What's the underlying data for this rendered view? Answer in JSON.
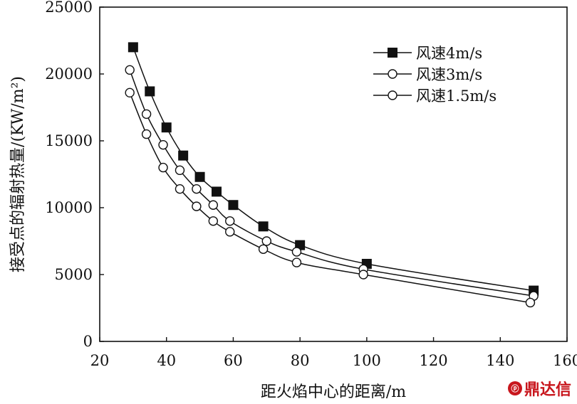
{
  "chart_data": {
    "type": "line",
    "xlabel": "距火焰中心的距离/m",
    "ylabel": "接受点的辐射热量/(KW/m²)",
    "xlim": [
      20,
      160
    ],
    "ylim": [
      0,
      25000
    ],
    "xticks": [
      "20",
      "40",
      "60",
      "80",
      "100",
      "120",
      "140",
      "160"
    ],
    "yticks": [
      "0",
      "5000",
      "10000",
      "15000",
      "20000",
      "25000"
    ],
    "legend_position": "top-right",
    "series": [
      {
        "name": "风速4m/s",
        "marker": "filled-square",
        "x": [
          30,
          35,
          40,
          45,
          50,
          55,
          60,
          69,
          80,
          100,
          150
        ],
        "y": [
          22000,
          18700,
          16000,
          13900,
          12300,
          11200,
          10200,
          8600,
          7200,
          5800,
          3800
        ]
      },
      {
        "name": "风速3m/s",
        "marker": "open-circle",
        "x": [
          29,
          34,
          39,
          44,
          49,
          54,
          59,
          70,
          79,
          99,
          150
        ],
        "y": [
          20300,
          17000,
          14700,
          12800,
          11400,
          10200,
          9000,
          7500,
          6700,
          5400,
          3400
        ]
      },
      {
        "name": "风速1.5m/s",
        "marker": "open-circle",
        "x": [
          29,
          34,
          39,
          44,
          49,
          54,
          59,
          69,
          79,
          99,
          149
        ],
        "y": [
          18600,
          15500,
          13000,
          11400,
          10100,
          9000,
          8200,
          6900,
          5900,
          5000,
          2900
        ]
      }
    ]
  },
  "watermark": {
    "badge": "ⓟ",
    "text": "鼎达信"
  }
}
